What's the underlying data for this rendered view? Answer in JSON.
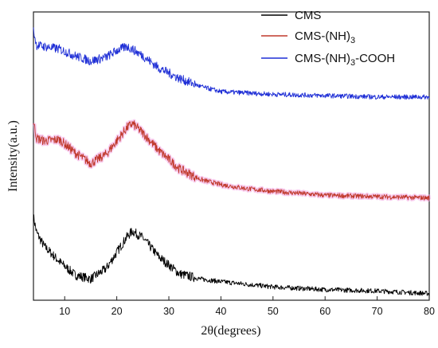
{
  "chart_data": {
    "type": "line",
    "xlabel": "2θ(degrees)",
    "ylabel": "Intensity(a.u.)",
    "xlim": [
      4,
      80
    ],
    "xticks": [
      10,
      20,
      30,
      40,
      50,
      60,
      70,
      80
    ],
    "yticks_shown": false,
    "legend_position": "top-right",
    "grid": false,
    "series": [
      {
        "name": "CMS",
        "name_parts": [
          "CMS",
          "",
          ""
        ],
        "color": "#000000",
        "points": [
          [
            4,
            0.58
          ],
          [
            4.6,
            0.46
          ],
          [
            6,
            0.36
          ],
          [
            9,
            0.24
          ],
          [
            12,
            0.14
          ],
          [
            15,
            0.11
          ],
          [
            18,
            0.19
          ],
          [
            20,
            0.31
          ],
          [
            22,
            0.43
          ],
          [
            23,
            0.47
          ],
          [
            25,
            0.42
          ],
          [
            28,
            0.28
          ],
          [
            32,
            0.15
          ],
          [
            36,
            0.11
          ],
          [
            40,
            0.09
          ],
          [
            50,
            0.05
          ],
          [
            60,
            0.03
          ],
          [
            70,
            0.02
          ],
          [
            80,
            0.0
          ]
        ]
      },
      {
        "name": "CMS-(NH)3",
        "name_parts": [
          "CMS-(NH)",
          "3",
          ""
        ],
        "color": "#c0392b",
        "highlight": "#f2a2e2",
        "points": [
          [
            4,
            1.3
          ],
          [
            4.6,
            1.17
          ],
          [
            6,
            1.15
          ],
          [
            9,
            1.16
          ],
          [
            12,
            1.06
          ],
          [
            15,
            0.98
          ],
          [
            18,
            1.05
          ],
          [
            20,
            1.15
          ],
          [
            22,
            1.25
          ],
          [
            23,
            1.28
          ],
          [
            25,
            1.21
          ],
          [
            28,
            1.08
          ],
          [
            32,
            0.94
          ],
          [
            36,
            0.86
          ],
          [
            40,
            0.82
          ],
          [
            45,
            0.79
          ],
          [
            50,
            0.77
          ],
          [
            60,
            0.74
          ],
          [
            70,
            0.73
          ],
          [
            80,
            0.72
          ]
        ]
      },
      {
        "name": "CMS-(NH)3-COOH",
        "name_parts": [
          "CMS-(NH)",
          "3",
          "-COOH"
        ],
        "color": "#1f2fd6",
        "points": [
          [
            4,
            1.98
          ],
          [
            4.6,
            1.87
          ],
          [
            6,
            1.86
          ],
          [
            9,
            1.84
          ],
          [
            12,
            1.79
          ],
          [
            15,
            1.75
          ],
          [
            18,
            1.78
          ],
          [
            20,
            1.83
          ],
          [
            22,
            1.86
          ],
          [
            23,
            1.84
          ],
          [
            25,
            1.79
          ],
          [
            28,
            1.7
          ],
          [
            32,
            1.62
          ],
          [
            36,
            1.56
          ],
          [
            40,
            1.52
          ],
          [
            50,
            1.5
          ],
          [
            60,
            1.49
          ],
          [
            70,
            1.48
          ],
          [
            80,
            1.48
          ]
        ]
      }
    ]
  }
}
